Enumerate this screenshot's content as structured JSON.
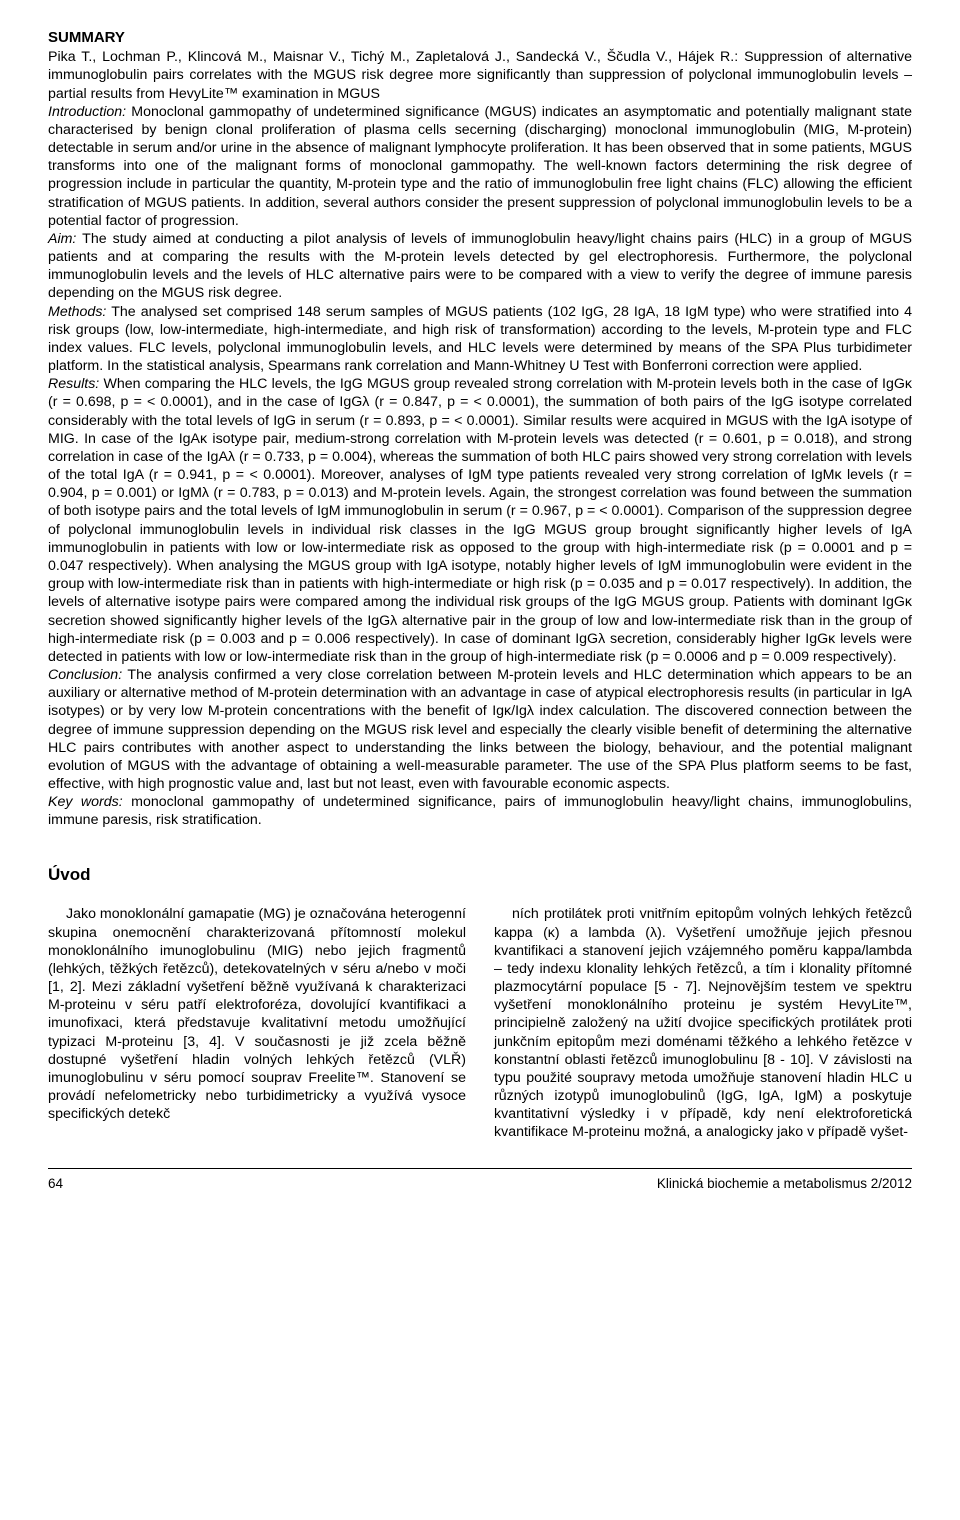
{
  "summary": {
    "heading": "SUMMARY",
    "authors": "Pika T., Lochman P., Klincová M., Maisnar V., Tichý M., Zapletalová J., Sandecká V., Ščudla V., Hájek R.: ",
    "title_line": "Suppression of alternative immunoglobulin pairs correlates with the MGUS risk degree more significantly than suppression of polyclonal immunoglobulin levels – partial results from HevyLite™ examination in MGUS",
    "intro_label": "Introduction:",
    "intro_text": " Monoclonal gammopathy of undetermined significance (MGUS) indicates an asymptomatic and potentially malignant state characterised by benign clonal proliferation of plasma cells secerning (discharging) monoclonal immunoglobulin (MIG, M-protein) detectable in serum and/or urine in the absence of malignant lymphocyte proliferation. It has been observed that in some patients, MGUS transforms into one of the malignant forms of monoclonal gammopathy. The well-known factors determining the risk degree of progression include in particular the quantity, M-protein type and the ratio of immunoglobulin free light chains (FLC) allowing the efficient stratification of MGUS patients. In addition, several authors consider the present suppression of polyclonal immunoglobulin levels to be a potential factor of progression.",
    "aim_label": "Aim:",
    "aim_text": " The study aimed at conducting a pilot analysis of levels of immunoglobulin heavy/light chains pairs (HLC) in a group of MGUS patients and at comparing the results with the M-protein levels detected by gel electrophoresis. Furthermore, the polyclonal immunoglobulin levels and the levels of HLC alternative pairs were to be compared with a view to verify the degree of immune paresis depending on the MGUS risk degree.",
    "methods_label": "Methods:",
    "methods_text": " The analysed set comprised 148 serum samples of MGUS patients (102 IgG, 28 IgA, 18 IgM type) who were stratified into 4 risk groups (low, low-intermediate, high-intermediate, and high risk of transformation) according to the levels, M-protein type and FLC index values. FLC levels, polyclonal immunoglobulin levels, and HLC levels were determined by means of the SPA Plus turbidimeter platform. In the statistical analysis, Spearmans rank correlation and Mann-Whitney U Test with Bonferroni correction were applied.",
    "results_label": "Results:",
    "results_text": " When comparing the HLC levels, the IgG MGUS group revealed strong correlation with M-protein levels both in the case of IgGκ (r = 0.698, p = < 0.0001), and in the case of IgGλ (r = 0.847, p = < 0.0001), the summation of both pairs of the IgG isotype correlated considerably with the total levels of IgG in serum (r = 0.893, p = < 0.0001). Similar results were acquired in MGUS with the IgA isotype of MIG. In case of the IgAκ isotype pair, medium-strong correlation with M-protein levels was detected (r = 0.601, p = 0.018), and strong correlation in case of the IgAλ (r = 0.733, p = 0.004), whereas the summation of both HLC pairs showed very strong correlation with levels of the total IgA (r = 0.941, p = < 0.0001). Moreover, analyses of IgM type patients revealed very strong correlation of IgMκ levels (r = 0.904, p = 0.001) or IgMλ (r = 0.783, p = 0.013) and M-protein levels. Again, the strongest correlation was found between the summation of both isotype pairs and the total levels of IgM immunoglobulin in serum (r = 0.967, p = < 0.0001). Comparison of the suppression degree of polyclonal immunoglobulin levels in individual risk classes in the IgG MGUS group brought significantly higher levels of IgA immunoglobulin in patients with low or low-intermediate risk as opposed to the group with high-intermediate risk (p = 0.0001 and p = 0.047 respectively). When analysing the MGUS group with IgA isotype, notably higher levels of IgM immunoglobulin were evident in the group with low-intermediate risk than in patients with high-intermediate or high risk (p = 0.035 and p = 0.017 respectively). In addition, the levels of alternative isotype pairs were compared among the individual risk groups of the IgG MGUS group. Patients with dominant IgGκ secretion showed significantly higher levels of the IgGλ alternative pair in the group of low and low-intermediate risk than in the group of high-intermediate risk (p = 0.003 and p = 0.006 respectively). In case of dominant IgGλ secretion, considerably higher IgGκ levels were detected in patients with low or low-intermediate risk than in the group of high-intermediate risk (p = 0.0006 and p = 0.009 respectively).",
    "conclusion_label": "Conclusion:",
    "conclusion_text": " The analysis confirmed a very close correlation between M-protein levels and HLC determination which appears to be an auxiliary or alternative method of M-protein determination with an advantage in case of atypical electrophoresis results (in particular in IgA isotypes) or by very low M-protein concentrations with the benefit of Igκ/Igλ index calculation. The discovered connection between the degree of immune suppression depending on the MGUS risk level and especially the clearly visible benefit of determining the alternative HLC pairs contributes with another aspect to understanding the links between the biology, behaviour, and the potential malignant evolution of MGUS with the advantage of obtaining a well-measurable parameter. The use of the SPA Plus platform seems to be fast, effective, with high prognostic value and, last but not least, even with favourable economic aspects.",
    "keywords_label": "Key words:",
    "keywords_text": " monoclonal gammopathy of undetermined significance, pairs of immunoglobulin heavy/light chains, immunoglobulins, immune paresis, risk stratification."
  },
  "uvod": {
    "heading": "Úvod",
    "col1": "Jako monoklonální gamapatie (MG) je označována heterogenní skupina onemocnění charakterizovaná přítomností molekul monoklonálního imunoglobulinu (MIG) nebo jejich fragmentů (lehkých, těžkých řetězců), detekovatelných v séru a/nebo v moči [1, 2]. Mezi základní vyšetření běžně využívaná k charakterizaci M-proteinu v séru patří elektroforéza, dovolující kvantifikaci a imunofixaci, která představuje kvalitativní metodu umožňující typizaci M-proteinu [3, 4]. V současnosti je již zcela běžně dostupné vyšetření hladin volných lehkých řetězců (VLŘ) imunoglobulinu v séru pomocí souprav Freelite™. Stanovení se provádí nefelometricky nebo turbidimetricky a využívá vysoce specifických detekč",
    "col2": "ních protilátek proti vnitřním epitopům volných lehkých řetězců kappa (κ) a lambda (λ). Vyšetření umožňuje jejich přesnou kvantifikaci a stanovení jejich vzájemného poměru kappa/lambda – tedy indexu klonality lehkých řetězců, a tím i klonality přítomné plazmocytární populace [5 - 7]. Nejnovějším testem ve spektru vyšetření monoklonálního proteinu je systém HevyLite™, principielně založený na užití dvojice specifických protilátek proti junkčním epitopům mezi doménami těžkého a lehkého řetězce v konstantní oblasti řetězců imunoglobulinu [8 - 10]. V závislosti na typu použité soupravy metoda umožňuje stanovení hladin HLC u různých izotypů imunoglobulinů (IgG, IgA, IgM) a poskytuje kvantitativní výsledky i v případě, kdy není elektroforetická kvantifikace M-proteinu možná, a analogicky jako v případě vyšet-"
  },
  "footer": {
    "page": "64",
    "journal": "Klinická biochemie a metabolismus 2/2012"
  }
}
